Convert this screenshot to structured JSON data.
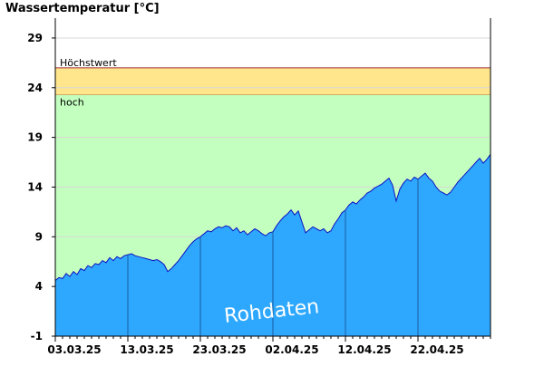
{
  "title": "Wassertemperatur [°C]",
  "watermark": "Rohdaten",
  "colors": {
    "warn_band": "#ffe68c",
    "normal_band": "#c3ffbe",
    "area_fill": "#2ea8ff",
    "line": "#1010c0",
    "threshold_line": "#a03030",
    "grid": "#d8d8d8",
    "axis": "#000000"
  },
  "chart_data": {
    "type": "area",
    "title": "Wassertemperatur [°C]",
    "xlabel": "",
    "ylabel": "",
    "ylim": [
      -1,
      31
    ],
    "y_ticks": [
      -1,
      4,
      9,
      14,
      19,
      24,
      29
    ],
    "x_start_day": 0,
    "x_end_day": 60,
    "x_ticks": [
      {
        "day": 0,
        "label": "03.03.25"
      },
      {
        "day": 10,
        "label": "13.03.25"
      },
      {
        "day": 20,
        "label": "23.03.25"
      },
      {
        "day": 30,
        "label": "02.04.25"
      },
      {
        "day": 40,
        "label": "12.04.25"
      },
      {
        "day": 50,
        "label": "22.04.25"
      }
    ],
    "bands": [
      {
        "label": "hoch",
        "from": 23.3,
        "to": 26.0
      },
      {
        "label": "",
        "from": -1,
        "to": 23.3
      }
    ],
    "thresholds": [
      {
        "label": "Höchstwert",
        "value": 26.0
      },
      {
        "label": "hoch",
        "value": 23.3
      }
    ],
    "series": [
      {
        "x": [
          0,
          0.5,
          1,
          1.5,
          2,
          2.5,
          3,
          3.5,
          4,
          4.5,
          5,
          5.5,
          6,
          6.5,
          7,
          7.5,
          8,
          8.5,
          9,
          9.5,
          10,
          10.5,
          11,
          11.5,
          12,
          12.5,
          13,
          13.5,
          14,
          14.5,
          15,
          15.5,
          16,
          16.5,
          17,
          17.5,
          18,
          18.5,
          19,
          19.5,
          20,
          20.5,
          21,
          21.5,
          22,
          22.5,
          23,
          23.5,
          24,
          24.5,
          25,
          25.5,
          26,
          26.5,
          27,
          27.5,
          28,
          28.5,
          29,
          29.5,
          30,
          30.5,
          31,
          31.5,
          32,
          32.5,
          33,
          33.5,
          34,
          34.5,
          35,
          35.5,
          36,
          36.5,
          37,
          37.5,
          38,
          38.5,
          39,
          39.5,
          40,
          40.5,
          41,
          41.5,
          42,
          42.5,
          43,
          43.5,
          44,
          44.5,
          45,
          45.5,
          46,
          46.5,
          47,
          47.5,
          48,
          48.5,
          49,
          49.5,
          50,
          50.5,
          51,
          51.5,
          52,
          52.5,
          53,
          53.5,
          54,
          54.5,
          55,
          55.5,
          56,
          56.5,
          57,
          57.5,
          58,
          58.5,
          59,
          59.5,
          60
        ],
        "values": [
          4.6,
          4.9,
          4.8,
          5.3,
          5.0,
          5.5,
          5.2,
          5.8,
          5.6,
          6.1,
          5.9,
          6.3,
          6.2,
          6.6,
          6.4,
          6.9,
          6.6,
          7.0,
          6.8,
          7.1,
          7.2,
          7.3,
          7.1,
          7.0,
          6.9,
          6.8,
          6.7,
          6.6,
          6.7,
          6.5,
          6.2,
          5.5,
          5.8,
          6.2,
          6.6,
          7.1,
          7.6,
          8.1,
          8.5,
          8.8,
          9.0,
          9.3,
          9.6,
          9.5,
          9.8,
          10.0,
          9.9,
          10.1,
          10.0,
          9.6,
          9.9,
          9.4,
          9.6,
          9.2,
          9.5,
          9.8,
          9.6,
          9.3,
          9.1,
          9.4,
          9.5,
          10.1,
          10.6,
          11.0,
          11.3,
          11.7,
          11.2,
          11.6,
          10.5,
          9.4,
          9.7,
          10.0,
          9.8,
          9.6,
          9.8,
          9.4,
          9.6,
          10.3,
          10.8,
          11.4,
          11.7,
          12.2,
          12.5,
          12.3,
          12.7,
          13.0,
          13.4,
          13.6,
          13.9,
          14.1,
          14.3,
          14.6,
          14.9,
          14.2,
          12.6,
          13.8,
          14.4,
          14.8,
          14.6,
          15.0,
          14.8,
          15.1,
          15.4,
          14.9,
          14.6,
          14.0,
          13.6,
          13.4,
          13.2,
          13.5,
          14.0,
          14.5,
          14.9,
          15.3,
          15.7,
          16.1,
          16.5,
          16.9,
          16.4,
          16.8,
          17.3
        ]
      }
    ]
  }
}
